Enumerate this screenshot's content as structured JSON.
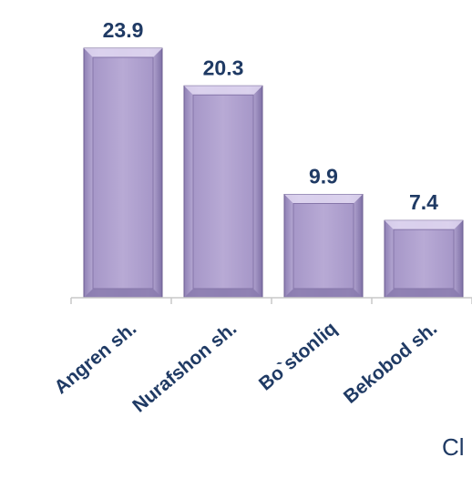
{
  "chart_data": {
    "type": "bar",
    "categories": [
      "Angren sh.",
      "Nurafshon sh.",
      "Bo`stonliq",
      "Bekobod sh."
    ],
    "values": [
      23.9,
      20.3,
      9.9,
      7.4
    ],
    "ylim": [
      0,
      23.9
    ],
    "grid": false,
    "bar_color": "#b6a8d2",
    "label_color": "#1f3a64"
  },
  "corner_text": "Cl"
}
